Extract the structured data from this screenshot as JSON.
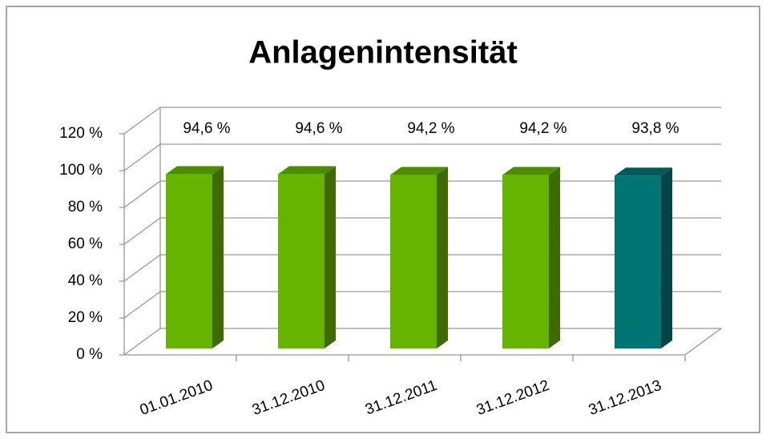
{
  "chart_data": {
    "type": "bar",
    "title": "Anlagenintensität",
    "categories": [
      "01.01.2010",
      "31.12.2010",
      "31.12.2011",
      "31.12.2012",
      "31.12.2013"
    ],
    "values": [
      94.6,
      94.6,
      94.2,
      94.2,
      93.8
    ],
    "value_labels": [
      "94,6 %",
      "94,6 %",
      "94,2 %",
      "94,2 %",
      "93,8 %"
    ],
    "colors": [
      "#66b300",
      "#66b300",
      "#66b300",
      "#66b300",
      "#007373"
    ],
    "ylim": [
      0,
      120
    ],
    "yticks": [
      {
        "value": 0,
        "label": "0 %"
      },
      {
        "value": 20,
        "label": "20 %"
      },
      {
        "value": 40,
        "label": "40 %"
      },
      {
        "value": 60,
        "label": "60 %"
      },
      {
        "value": 80,
        "label": "80 %"
      },
      {
        "value": 100,
        "label": "100 %"
      },
      {
        "value": 120,
        "label": "120 %"
      }
    ],
    "grid": true
  }
}
